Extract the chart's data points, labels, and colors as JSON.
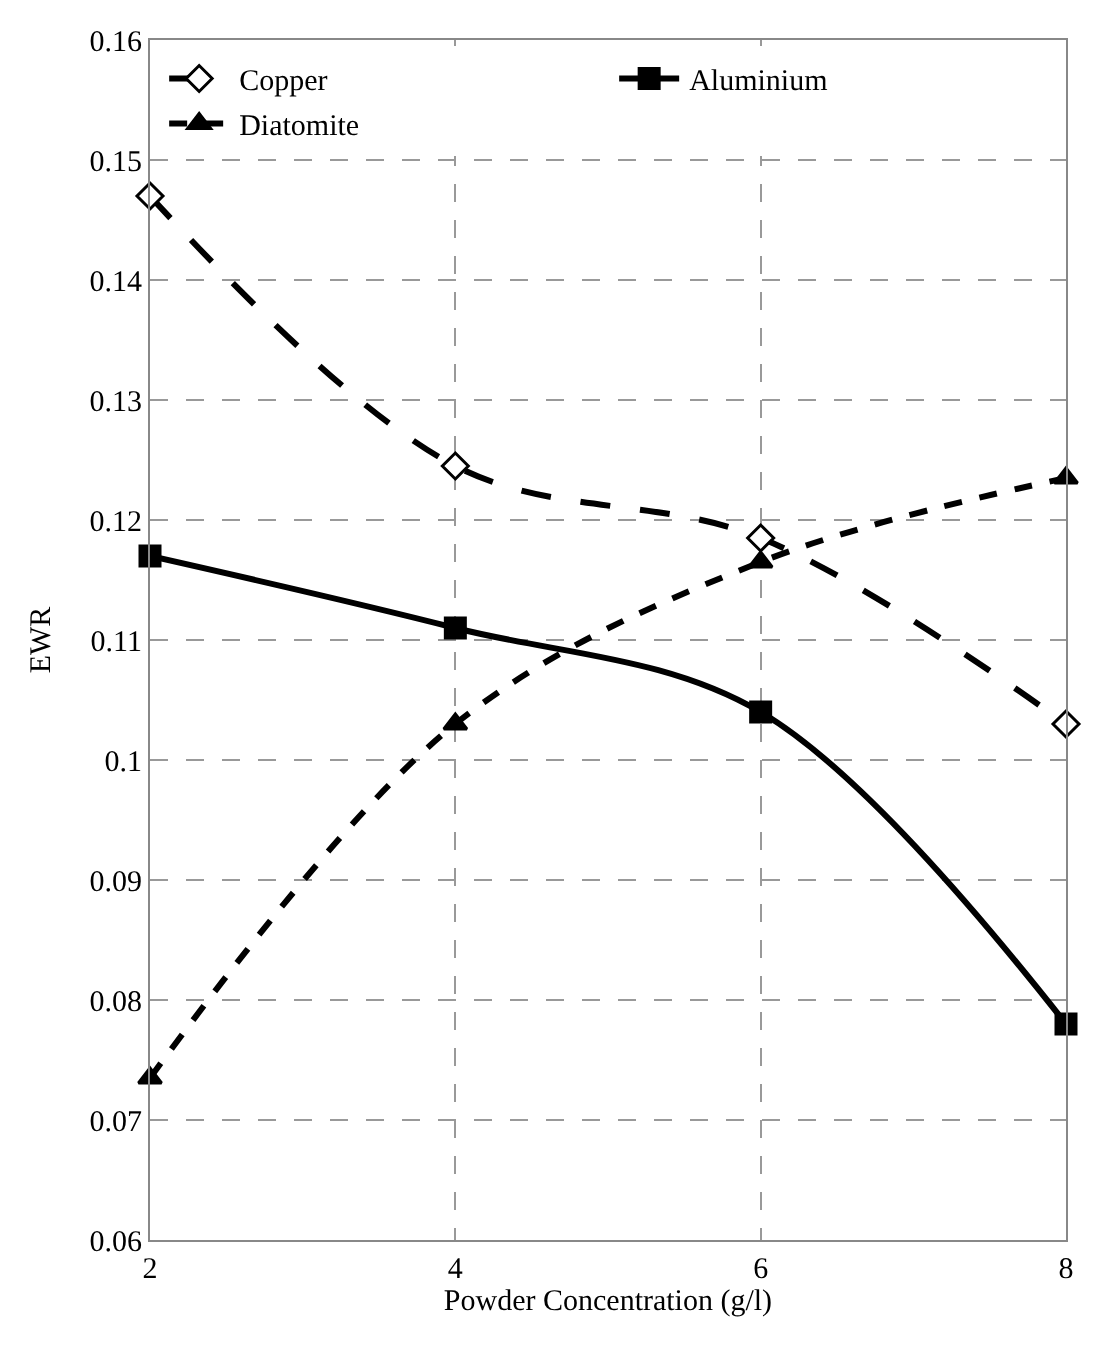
{
  "chart_data": {
    "type": "line",
    "xlabel": "Powder Concentration (g/l)",
    "ylabel": "EWR",
    "x": [
      2,
      4,
      6,
      8
    ],
    "series": [
      {
        "name": "Copper",
        "color": "#000000",
        "marker": "diamond",
        "line_style": "dashed",
        "values": [
          0.147,
          0.1245,
          0.1185,
          0.103
        ]
      },
      {
        "name": "Aluminium",
        "color": "#000000",
        "marker": "square",
        "line_style": "solid",
        "values": [
          0.117,
          0.111,
          0.104,
          0.078
        ]
      },
      {
        "name": "Diatomite",
        "color": "#000000",
        "marker": "triangle",
        "line_style": "dotted",
        "values": [
          0.0735,
          0.103,
          0.1165,
          0.1235
        ]
      }
    ],
    "xlim": [
      2,
      8
    ],
    "xticks": [
      2,
      4,
      6,
      8
    ],
    "ylim": [
      0.06,
      0.16
    ],
    "yticks": [
      0.06,
      0.07,
      0.08,
      0.09,
      0.1,
      0.11,
      0.12,
      0.13,
      0.14,
      0.15,
      0.16
    ],
    "grid": true,
    "legend": "top"
  }
}
